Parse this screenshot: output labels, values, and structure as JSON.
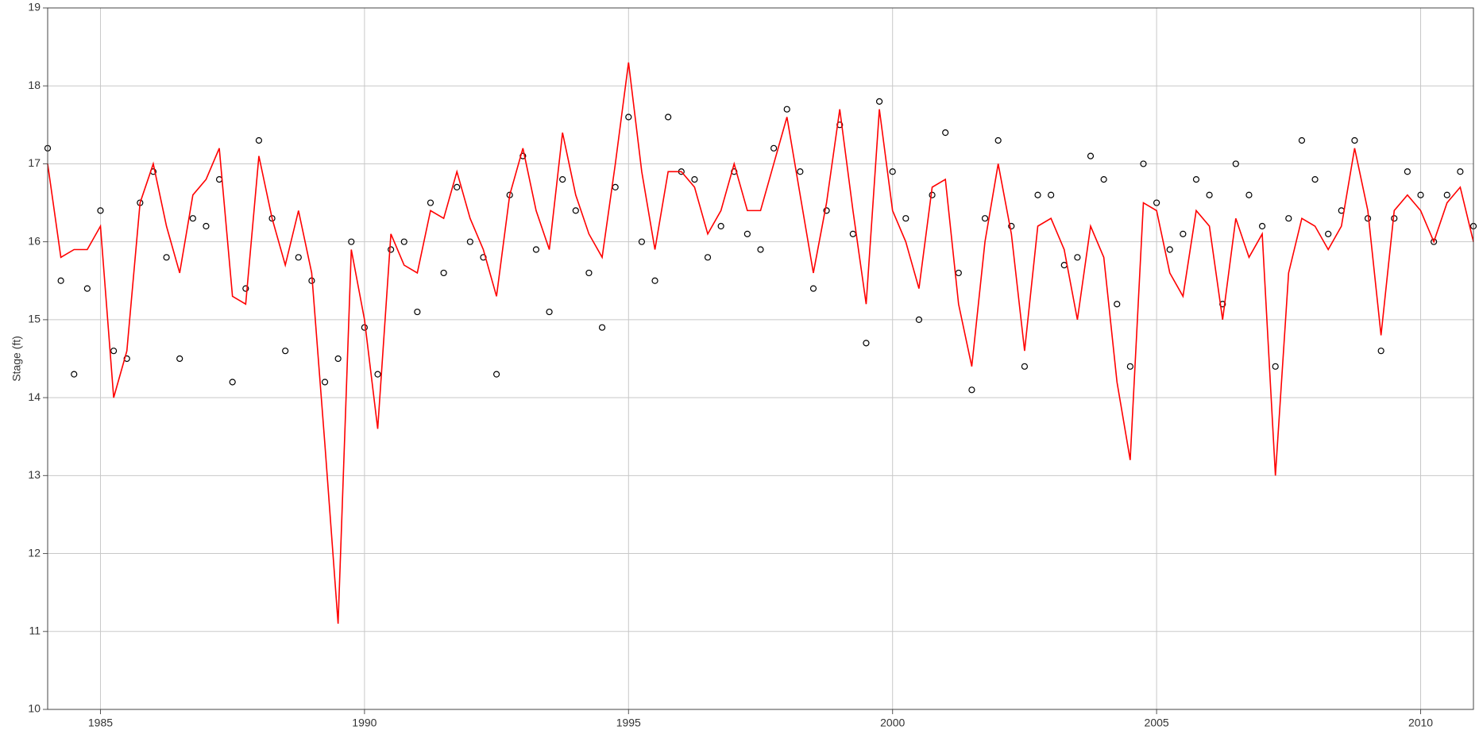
{
  "chart_data": {
    "type": "line",
    "y_label": "Stage (ft)",
    "xlim": [
      1984,
      2011
    ],
    "xticks": [
      1985,
      1990,
      1995,
      2000,
      2005,
      2010
    ],
    "ylim": [
      10,
      19
    ],
    "yticks": [
      10,
      11,
      12,
      13,
      14,
      15,
      16,
      17,
      18,
      19
    ],
    "grid": true,
    "x": [
      1984,
      1984.25,
      1984.5,
      1984.75,
      1985,
      1985.25,
      1985.5,
      1985.75,
      1986,
      1986.25,
      1986.5,
      1986.75,
      1987,
      1987.25,
      1987.5,
      1987.75,
      1988,
      1988.25,
      1988.5,
      1988.75,
      1989,
      1989.25,
      1989.5,
      1989.75,
      1990,
      1990.25,
      1990.5,
      1990.75,
      1991,
      1991.25,
      1991.5,
      1991.75,
      1992,
      1992.25,
      1992.5,
      1992.75,
      1993,
      1993.25,
      1993.5,
      1993.75,
      1994,
      1994.25,
      1994.5,
      1994.75,
      1995,
      1995.25,
      1995.5,
      1995.75,
      1996,
      1996.25,
      1996.5,
      1996.75,
      1997,
      1997.25,
      1997.5,
      1997.75,
      1998,
      1998.25,
      1998.5,
      1998.75,
      1999,
      1999.25,
      1999.5,
      1999.75,
      2000,
      2000.25,
      2000.5,
      2000.75,
      2001,
      2001.25,
      2001.5,
      2001.75,
      2002,
      2002.25,
      2002.5,
      2002.75,
      2003,
      2003.25,
      2003.5,
      2003.75,
      2004,
      2004.25,
      2004.5,
      2004.75,
      2005,
      2005.25,
      2005.5,
      2005.75,
      2006,
      2006.25,
      2006.5,
      2006.75,
      2007,
      2007.25,
      2007.5,
      2007.75,
      2008,
      2008.25,
      2008.5,
      2008.75,
      2009,
      2009.25,
      2009.5,
      2009.75,
      2010,
      2010.25,
      2010.5,
      2010.75,
      2011
    ],
    "series": [
      {
        "mode": "markers",
        "color": "#000000",
        "values": [
          17.2,
          15.5,
          14.3,
          15.4,
          16.4,
          14.6,
          14.5,
          16.5,
          16.9,
          15.8,
          14.5,
          16.3,
          16.2,
          16.8,
          14.2,
          15.4,
          17.3,
          16.3,
          14.6,
          15.8,
          15.5,
          14.2,
          14.5,
          16.0,
          14.9,
          14.3,
          15.9,
          16.0,
          15.1,
          16.5,
          15.6,
          16.7,
          16.0,
          15.8,
          14.3,
          16.6,
          17.1,
          15.9,
          15.1,
          16.8,
          16.4,
          15.6,
          14.9,
          16.7,
          17.6,
          16.0,
          15.5,
          17.6,
          16.9,
          16.8,
          15.8,
          16.2,
          16.9,
          16.1,
          15.9,
          17.2,
          17.7,
          16.9,
          15.4,
          16.4,
          17.5,
          16.1,
          14.7,
          17.8,
          16.9,
          16.3,
          15.0,
          16.6,
          17.4,
          15.6,
          14.1,
          16.3,
          17.3,
          16.2,
          14.4,
          16.6,
          16.6,
          15.7,
          15.8,
          17.1,
          16.8,
          15.2,
          14.4,
          17.0,
          16.5,
          15.9,
          16.1,
          16.8,
          16.6,
          15.2,
          17.0,
          16.6,
          16.2,
          14.4,
          16.3,
          17.3,
          16.8,
          16.1,
          16.4,
          17.3,
          16.3,
          14.6,
          16.3,
          16.9,
          16.6,
          16.0,
          16.6,
          16.9,
          16.2
        ]
      },
      {
        "mode": "lines",
        "color": "#ff0000",
        "values": [
          17.0,
          15.8,
          15.9,
          15.9,
          16.2,
          14.0,
          14.6,
          16.5,
          17.0,
          16.2,
          15.6,
          16.6,
          16.8,
          17.2,
          15.3,
          15.2,
          17.1,
          16.3,
          15.7,
          16.4,
          15.6,
          13.4,
          11.1,
          15.9,
          15.0,
          13.6,
          16.1,
          15.7,
          15.6,
          16.4,
          16.3,
          16.9,
          16.3,
          15.9,
          15.3,
          16.6,
          17.2,
          16.4,
          15.9,
          17.4,
          16.6,
          16.1,
          15.8,
          17.0,
          18.3,
          16.9,
          15.9,
          16.9,
          16.9,
          16.7,
          16.1,
          16.4,
          17.0,
          16.4,
          16.4,
          17.0,
          17.6,
          16.6,
          15.6,
          16.5,
          17.7,
          16.4,
          15.2,
          17.7,
          16.4,
          16.0,
          15.4,
          16.7,
          16.8,
          15.2,
          14.4,
          16.0,
          17.0,
          16.1,
          14.6,
          16.2,
          16.3,
          15.9,
          15.0,
          16.2,
          15.8,
          14.2,
          13.2,
          16.5,
          16.4,
          15.6,
          15.3,
          16.4,
          16.2,
          15.0,
          16.3,
          15.8,
          16.1,
          13.0,
          15.6,
          16.3,
          16.2,
          15.9,
          16.2,
          17.2,
          16.4,
          14.8,
          16.4,
          16.6,
          16.4,
          16.0,
          16.5,
          16.7,
          16.0
        ]
      }
    ]
  }
}
